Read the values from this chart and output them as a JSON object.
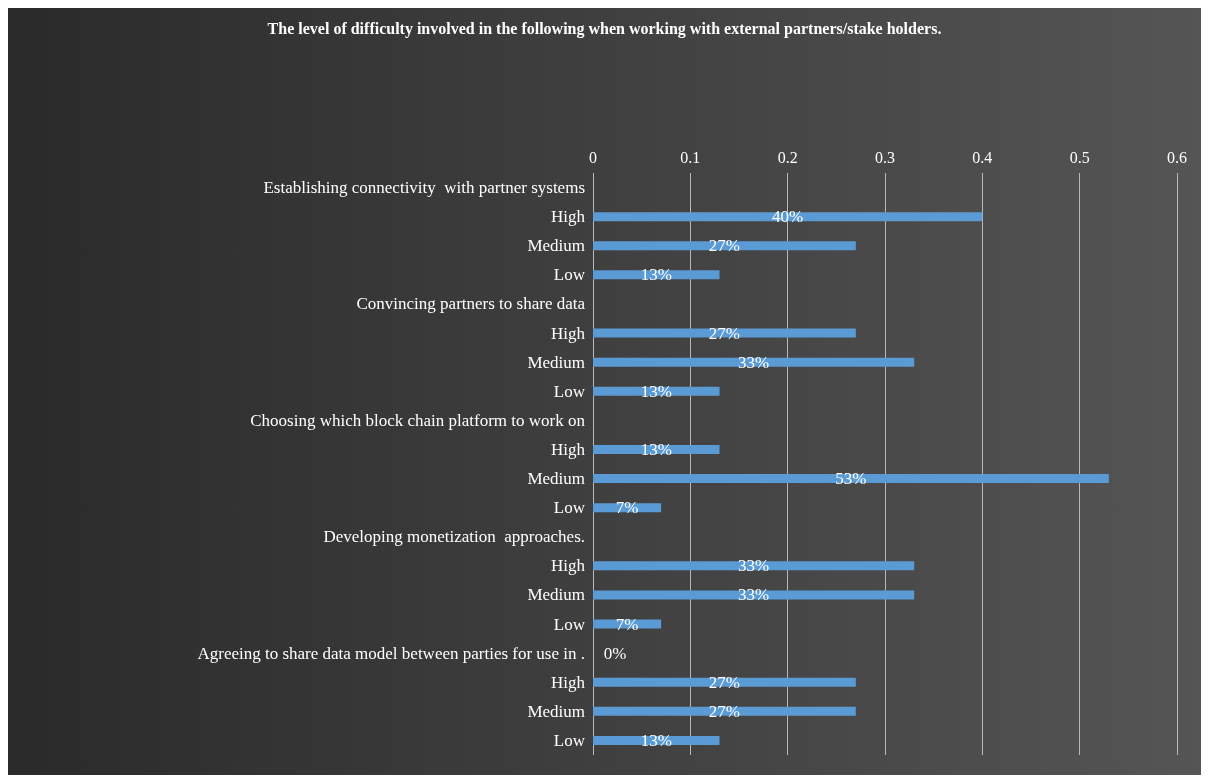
{
  "chart_data": {
    "type": "bar",
    "orientation": "horizontal",
    "title": "The level of difficulty involved in the following when working with external partners/stake holders.",
    "categories": [
      "Establishing connectivity  with partner systems",
      "High",
      "Medium",
      "Low",
      "Convincing partners to share data",
      "High",
      "Medium",
      "Low",
      "Choosing which block chain platform to work on",
      "High",
      "Medium",
      "Low",
      "Developing monetization  approaches.",
      "High",
      "Medium",
      "Low",
      "Agreeing to share data model between parties for use in .",
      "High",
      "Medium",
      "Low"
    ],
    "values": [
      null,
      0.4,
      0.27,
      0.13,
      null,
      0.27,
      0.33,
      0.13,
      null,
      0.13,
      0.53,
      0.07,
      null,
      0.33,
      0.33,
      0.07,
      0,
      0.27,
      0.27,
      0.13
    ],
    "value_labels": [
      null,
      "40%",
      "27%",
      "13%",
      null,
      "27%",
      "33%",
      "13%",
      null,
      "13%",
      "53%",
      "7%",
      null,
      "33%",
      "33%",
      "7%",
      "0%",
      "27%",
      "27%",
      "13%"
    ],
    "color": "#5b9bd5",
    "xlim": [
      0,
      0.6
    ],
    "xticks": [
      0,
      0.1,
      0.2,
      0.3,
      0.4,
      0.5,
      0.6
    ],
    "grid": "x"
  }
}
